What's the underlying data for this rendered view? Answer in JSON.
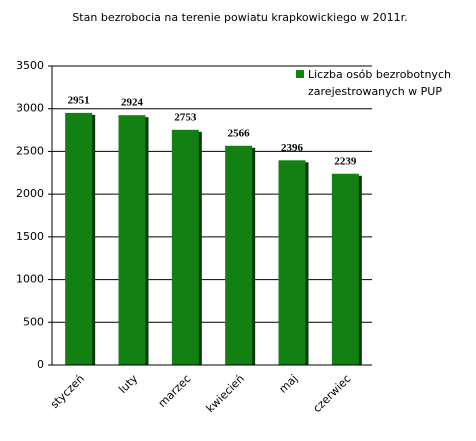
{
  "chart_data": {
    "type": "bar",
    "title": "Stan bezrobocia na terenie powiatu krapkowickiego w 2011r.",
    "categories": [
      "styczeń",
      "luty",
      "marzec",
      "kwiecień",
      "maj",
      "czerwiec"
    ],
    "series": [
      {
        "name": "Liczba osób bezrobotnych zarejestrowanych w PUP",
        "color": "#138013",
        "values": [
          2951,
          2924,
          2753,
          2566,
          2396,
          2239
        ]
      }
    ],
    "ylim": [
      0,
      3500
    ],
    "yticks": [
      0,
      500,
      1000,
      1500,
      2000,
      2500,
      3000,
      3500
    ],
    "grid": true,
    "legend": "top-right"
  }
}
